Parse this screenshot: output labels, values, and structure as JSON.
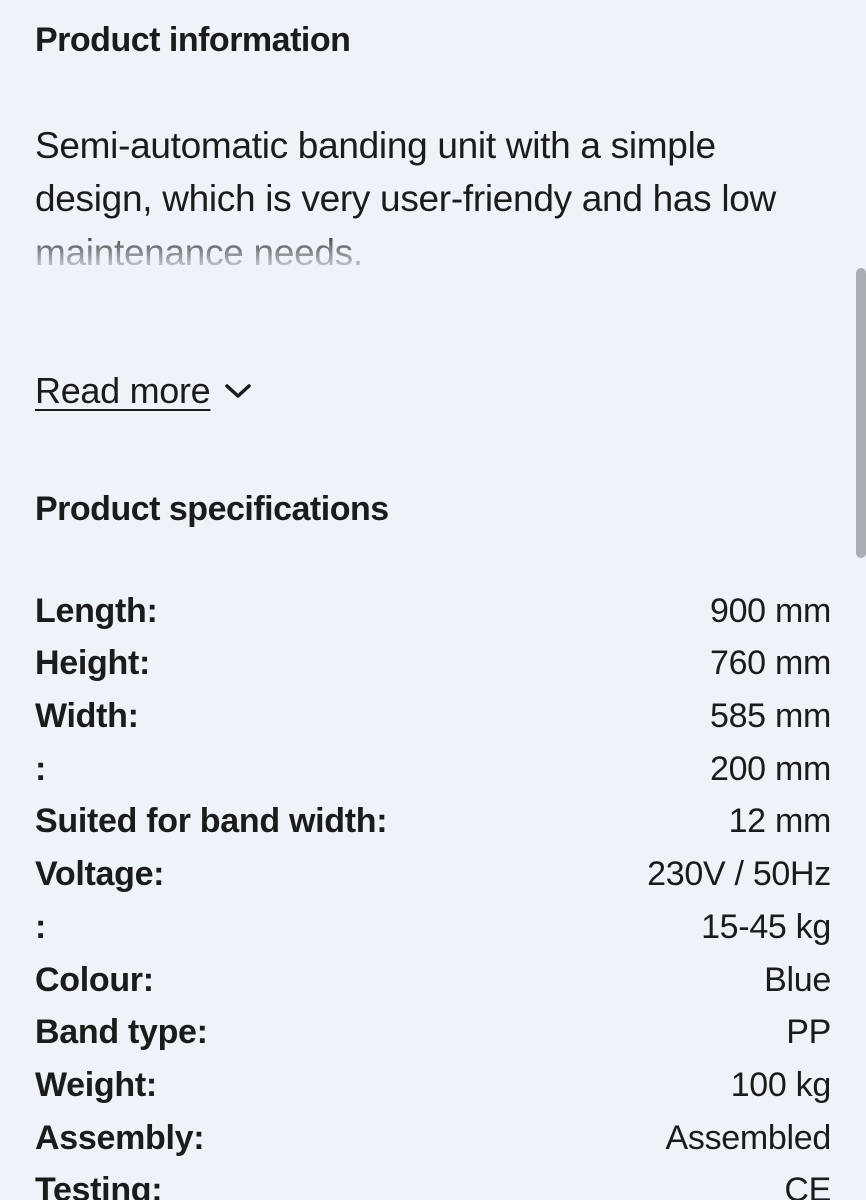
{
  "colors": {
    "background": "#edf3f9",
    "text": "#1b1b1b",
    "scrollbar": "#a9adb1"
  },
  "info": {
    "heading": "Product information",
    "description": "Semi-automatic banding unit with a simple design, which is very user-friendy and has low maintenance needs.",
    "read_more_label": "Read more"
  },
  "specs": {
    "heading": "Product specifications",
    "rows": [
      {
        "label": "Length:",
        "value": "900 mm"
      },
      {
        "label": "Height:",
        "value": "760 mm"
      },
      {
        "label": "Width:",
        "value": "585 mm"
      },
      {
        "label": ":",
        "value": "200 mm"
      },
      {
        "label": "Suited for band width:",
        "value": "12 mm"
      },
      {
        "label": "Voltage:",
        "value": "230V / 50Hz"
      },
      {
        "label": ":",
        "value": "15-45 kg"
      },
      {
        "label": "Colour:",
        "value": "Blue"
      },
      {
        "label": "Band type:",
        "value": "PP"
      },
      {
        "label": "Weight:",
        "value": "100 kg"
      },
      {
        "label": "Assembly:",
        "value": "Assembled"
      },
      {
        "label": "Testing:",
        "value": "CE"
      }
    ]
  }
}
